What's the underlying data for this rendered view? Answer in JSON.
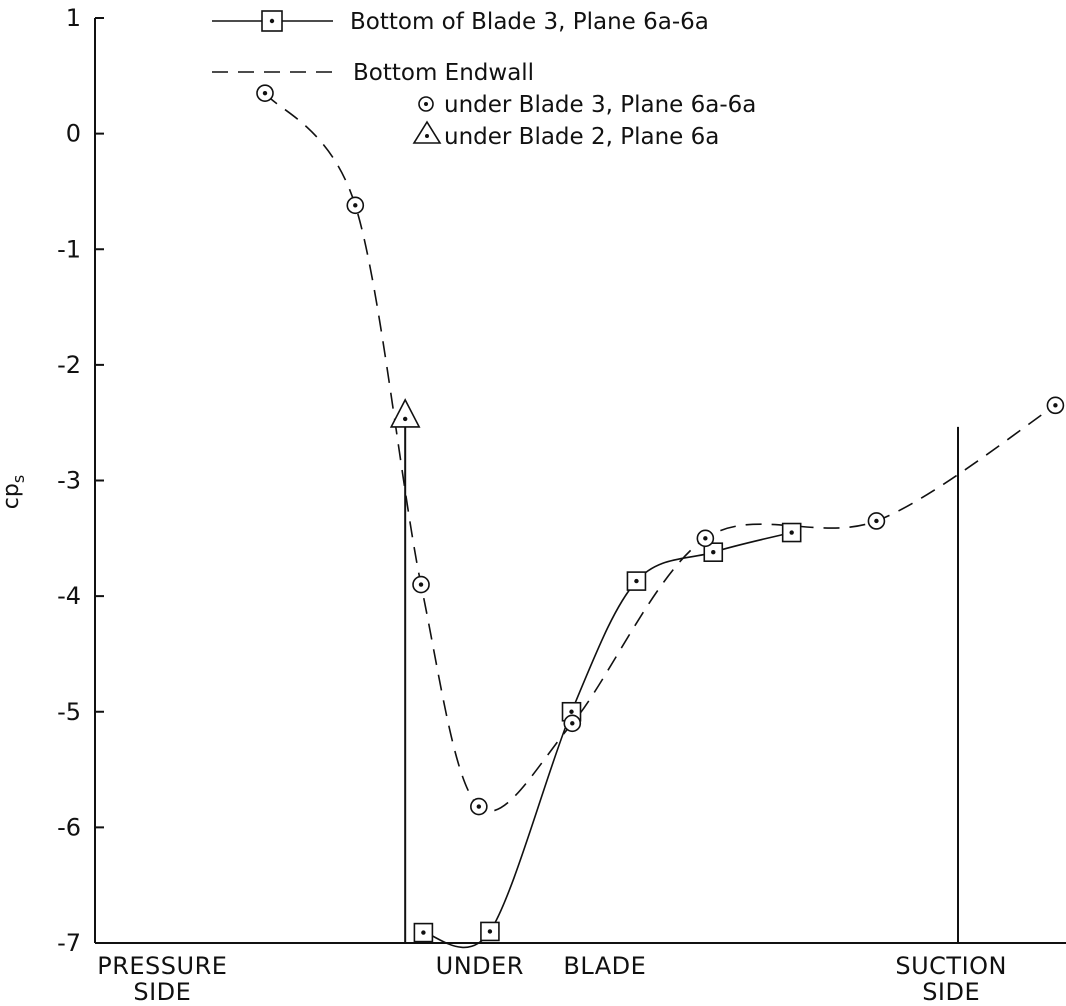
{
  "chart_data": {
    "type": "line",
    "title": "",
    "xlabel": "",
    "ylabel": "cp",
    "ylabel_sub": "s",
    "ylim": [
      -7,
      1
    ],
    "yticks": [
      1,
      0,
      -1,
      -2,
      -3,
      -4,
      -5,
      -6,
      -7
    ],
    "ytick_labels": [
      "1",
      "0",
      "-1",
      "-2",
      "-3",
      "-4",
      "-5",
      "-6",
      "-7"
    ],
    "x_range": [
      0,
      100
    ],
    "x_categories": [
      {
        "label": "PRESSURE",
        "label2": "SIDE",
        "x": 7
      },
      {
        "label": "UNDER",
        "label2": "",
        "x": 40
      },
      {
        "label": "BLADE",
        "label2": "",
        "x": 53
      },
      {
        "label": "SUCTION",
        "label2": "SIDE",
        "x": 89
      }
    ],
    "reference_lines_x": [
      17.7,
      87.5
    ],
    "grid": false,
    "legend_position": "top",
    "legend": {
      "entry1": "Bottom of Blade 3, Plane 6a-6a",
      "entry2": "Bottom Endwall",
      "entry3": "under Blade 3, Plane 6a-6a",
      "entry4": "under Blade 2, Plane 6a"
    },
    "series": [
      {
        "name": "Bottom of Blade 3, Plane 6a-6a",
        "style": "solid",
        "marker": "square-dot",
        "points": [
          [
            20.0,
            -6.91
          ],
          [
            28.4,
            -6.9
          ],
          [
            38.7,
            -5.0
          ],
          [
            46.9,
            -3.87
          ],
          [
            56.6,
            -3.62
          ],
          [
            66.5,
            -3.45
          ]
        ]
      },
      {
        "name": "under Blade 3, Plane 6a-6a",
        "style": "dashed",
        "marker": "circle-dot",
        "points": [
          [
            0,
            0.35
          ],
          [
            11.4,
            -0.62
          ],
          [
            19.7,
            -3.9
          ],
          [
            27.0,
            -5.82
          ],
          [
            38.8,
            -5.1
          ],
          [
            55.6,
            -3.5
          ],
          [
            77.2,
            -3.35
          ],
          [
            99.8,
            -2.35
          ]
        ]
      },
      {
        "name": "under Blade 2, Plane 6a",
        "style": "none",
        "marker": "triangle-dot",
        "points": [
          [
            17.7,
            -2.45
          ]
        ]
      }
    ]
  }
}
